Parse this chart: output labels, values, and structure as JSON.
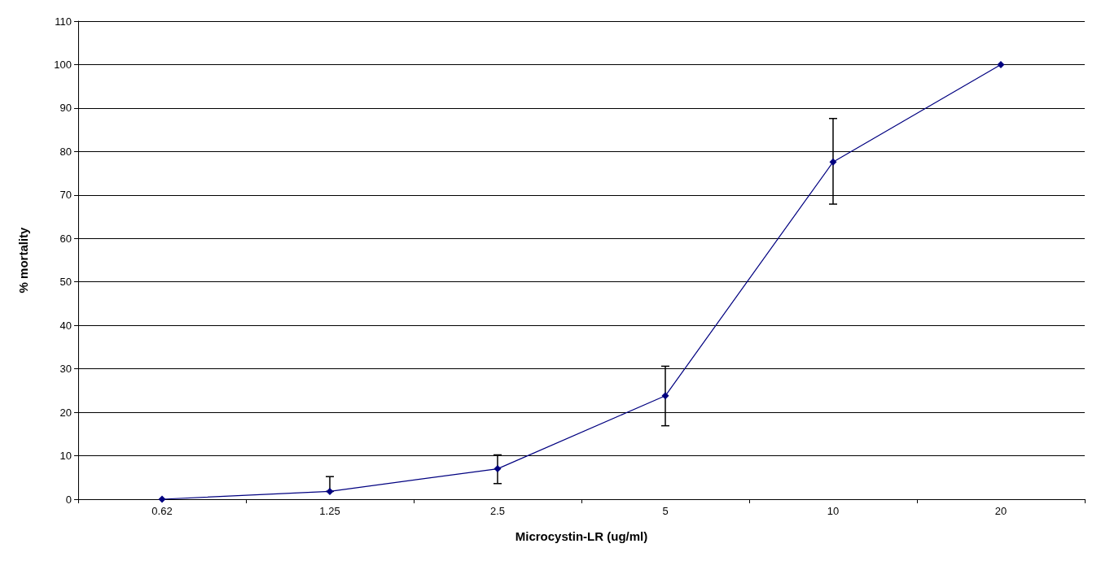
{
  "chart_data": {
    "type": "line",
    "xlabel": "Microcystin-LR (ug/ml)",
    "ylabel": "% mortality",
    "categories": [
      "0.62",
      "1.25",
      "2.5",
      "5",
      "10",
      "20"
    ],
    "series": [
      {
        "color": "#000080",
        "values": [
          0,
          1.8,
          7.0,
          23.8,
          77.6,
          100
        ],
        "errors": [
          null,
          [
            1.8,
            5.2
          ],
          [
            3.6,
            10.2
          ],
          [
            16.9,
            30.6
          ],
          [
            67.9,
            87.6
          ],
          null
        ]
      }
    ],
    "ylim": [
      0,
      110
    ],
    "yticks": [
      0,
      10,
      20,
      30,
      40,
      50,
      60,
      70,
      80,
      90,
      100,
      110
    ],
    "grid": "y",
    "marker": "diamond",
    "line_style": "solid"
  }
}
